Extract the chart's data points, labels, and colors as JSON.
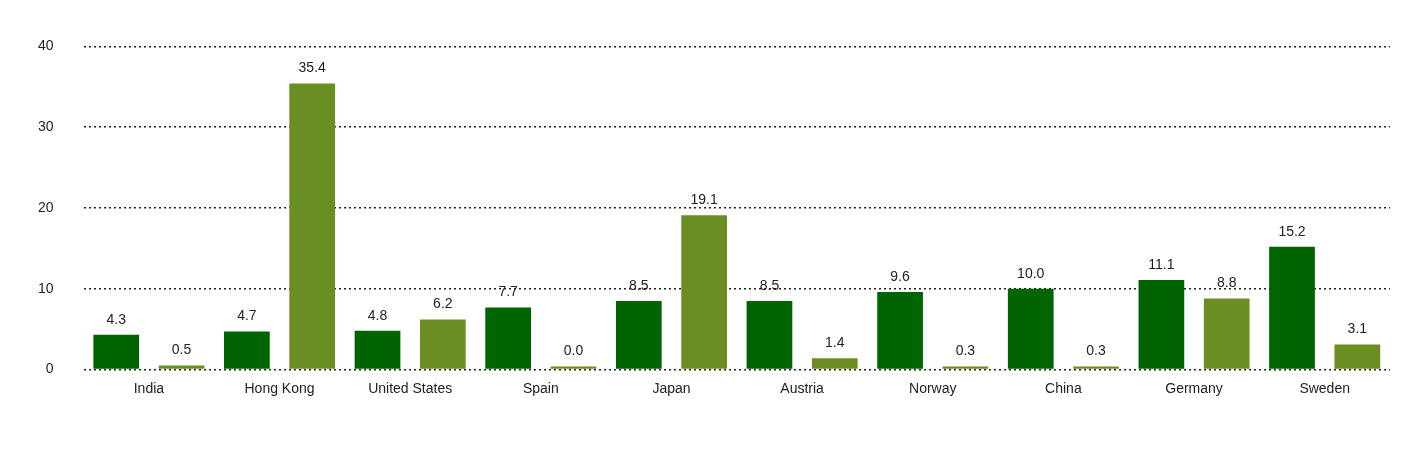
{
  "chart_data": {
    "type": "bar",
    "categories": [
      "India",
      "Hong Kong",
      "United States",
      "Spain",
      "Japan",
      "Austria",
      "Norway",
      "China",
      "Germany",
      "Sweden"
    ],
    "series": [
      {
        "color": "#006400",
        "values": [
          4.3,
          4.7,
          4.8,
          7.7,
          8.5,
          8.5,
          9.6,
          10,
          11.1,
          15.2
        ],
        "value_labels": [
          "4.3",
          "4.7",
          "4.8",
          "7.7",
          "8.5",
          "8.5",
          "9.6",
          "10.0",
          "11.1",
          "15.2"
        ]
      },
      {
        "color": "#6b8e23",
        "values": [
          0.5,
          35.4,
          6.2,
          0,
          19.1,
          1.4,
          0.3,
          0.3,
          8.8,
          3.1
        ],
        "value_labels": [
          "0.5",
          "35.4",
          "6.2",
          "0.0",
          "19.1",
          "1.4",
          "0.3",
          "0.3",
          "8.8",
          "3.1"
        ]
      }
    ],
    "ylim": [
      0,
      40
    ],
    "yticks": [
      0,
      10,
      20,
      30,
      40
    ],
    "grid": "y"
  }
}
